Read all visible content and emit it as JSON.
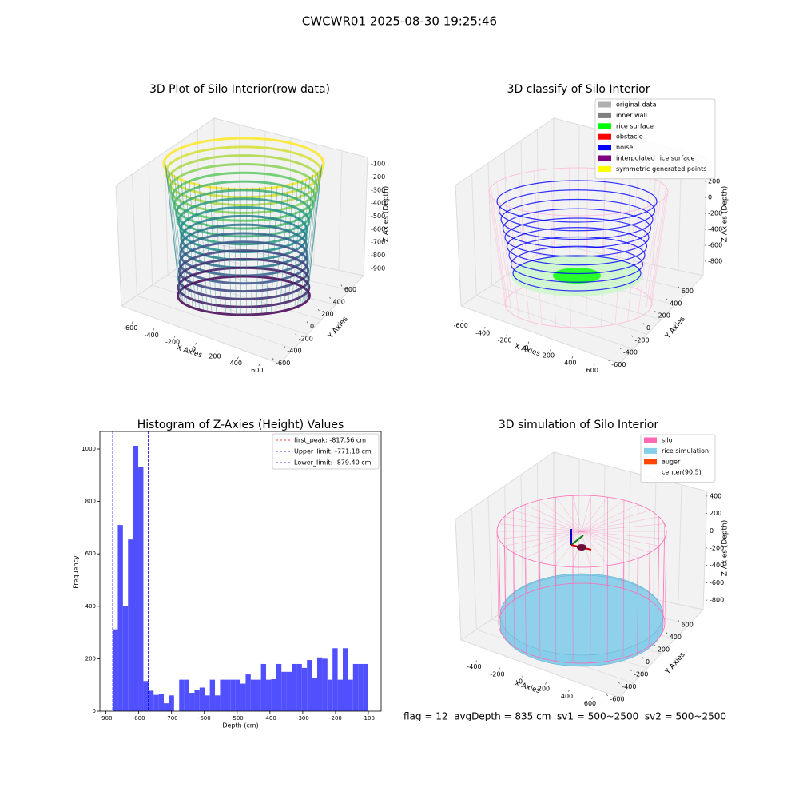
{
  "suptitle": "CWCWR01 2025-08-30 19:25:46",
  "footer": "flag = 12  avgDepth = 835 cm  sv1 = 500~2500  sv2 = 500~2500",
  "chart_data": [
    {
      "type": "scatter3d",
      "title": "3D Plot of Silo Interior(row data)",
      "x_label": "X Axies",
      "y_label": "Y Axies",
      "z_label": "Z Axies (Depth)",
      "xlim": [
        -700,
        700
      ],
      "xticks": [
        -600,
        -400,
        -200,
        0,
        200,
        400,
        600
      ],
      "ylim": [
        -700,
        700
      ],
      "yticks": [
        -600,
        -400,
        -200,
        0,
        200,
        400,
        600
      ],
      "zlim": [
        -950,
        -50
      ],
      "zticks": [
        -100,
        -200,
        -300,
        -400,
        -500,
        -600,
        -700,
        -800,
        -900
      ],
      "series": []
    },
    {
      "type": "scatter3d",
      "title": "3D classify of Silo Interior",
      "x_label": "X Axies",
      "y_label": "Y Axies",
      "z_label": "Z Axies (Depth)",
      "xlim": [
        -700,
        700
      ],
      "xticks": [
        -600,
        -400,
        -200,
        0,
        200,
        400,
        600
      ],
      "ylim": [
        -700,
        700
      ],
      "yticks": [
        -600,
        -400,
        -200,
        0,
        200,
        400,
        600
      ],
      "zlim": [
        -900,
        300
      ],
      "zticks": [
        200,
        0,
        -200,
        -400,
        -600,
        -800
      ],
      "series": [
        {
          "name": "original data",
          "color": "#b0b0b0"
        },
        {
          "name": "inner wall",
          "color": "#808080"
        },
        {
          "name": "rice surface",
          "color": "#00ff00"
        },
        {
          "name": "obstacle",
          "color": "#ff0000"
        },
        {
          "name": "noise",
          "color": "#0000ff"
        },
        {
          "name": "interpolated rice surface",
          "color": "#800080"
        },
        {
          "name": "symmetric generated points",
          "color": "#ffff00"
        }
      ]
    },
    {
      "type": "histogram",
      "title": "Histogram of Z-Axies (Height) Values",
      "x_label": "Depth (cm)",
      "y_label": "Frequency",
      "color": "#5050ff",
      "bins": [
        -879.4,
        -863.81,
        -848.22,
        -832.64,
        -817.05,
        -801.46,
        -785.87,
        -770.28,
        -754.7,
        -739.11,
        -723.52,
        -707.93,
        -692.34,
        -676.76,
        -661.17,
        -645.58,
        -629.99,
        -614.4,
        -598.82,
        -583.23,
        -567.64,
        -552.05,
        -536.46,
        -520.88,
        -505.29,
        -489.7,
        -474.11,
        -458.52,
        -442.94,
        -427.35,
        -411.76,
        -396.17,
        -380.58,
        -365.0,
        -349.41,
        -333.82,
        -318.23,
        -302.64,
        -287.06,
        -271.47,
        -255.88,
        -240.29,
        -224.7,
        -209.12,
        -193.53,
        -177.94,
        -162.35,
        -146.76,
        -131.18,
        -115.59,
        -100.0
      ],
      "counts": [
        312,
        710,
        400,
        655,
        1012,
        930,
        115,
        78,
        62,
        65,
        30,
        60,
        0,
        120,
        120,
        70,
        82,
        90,
        60,
        120,
        60,
        120,
        120,
        120,
        120,
        105,
        140,
        120,
        120,
        180,
        120,
        122,
        180,
        150,
        150,
        180,
        180,
        165,
        195,
        128,
        205,
        200,
        120,
        240,
        120,
        240,
        120,
        180,
        180,
        180
      ],
      "vlines": [
        {
          "name": "first_peak: -817.56 cm",
          "value": -817.56,
          "color": "#ff0000"
        },
        {
          "name": "Upper_limit: -771.18 cm",
          "value": -771.18,
          "color": "#0000ff"
        },
        {
          "name": "Lower_limit: -879.40 cm",
          "value": -879.4,
          "color": "#0000ff"
        }
      ],
      "xlim": [
        -918.5,
        -61
      ],
      "xticks": [
        -900,
        -800,
        -700,
        -600,
        -500,
        -400,
        -300,
        -200,
        -100
      ],
      "ylim": [
        0,
        1067
      ],
      "yticks": [
        0,
        200,
        400,
        600,
        800,
        1000
      ]
    },
    {
      "type": "scatter3d",
      "title": "3D simulation of Silo Interior",
      "x_label": "X Axies",
      "y_label": "Y Axies",
      "z_label": "Z Axies (Depth)",
      "xlim": [
        -500,
        700
      ],
      "xticks": [
        -400,
        -200,
        0,
        200,
        400,
        600
      ],
      "ylim": [
        -700,
        700
      ],
      "yticks": [
        -600,
        -400,
        -200,
        0,
        200,
        400,
        600
      ],
      "zlim": [
        -900,
        500
      ],
      "zticks": [
        400,
        200,
        0,
        -200,
        -400,
        -600,
        -800
      ],
      "series": [
        {
          "name": "silo",
          "color": "#ff69b4"
        },
        {
          "name": "rice simulation",
          "color": "#87ceeb"
        },
        {
          "name": "auger",
          "color": "#ff4500"
        },
        {
          "name": "center(90,5)",
          "color": "#ffffff"
        }
      ]
    }
  ]
}
